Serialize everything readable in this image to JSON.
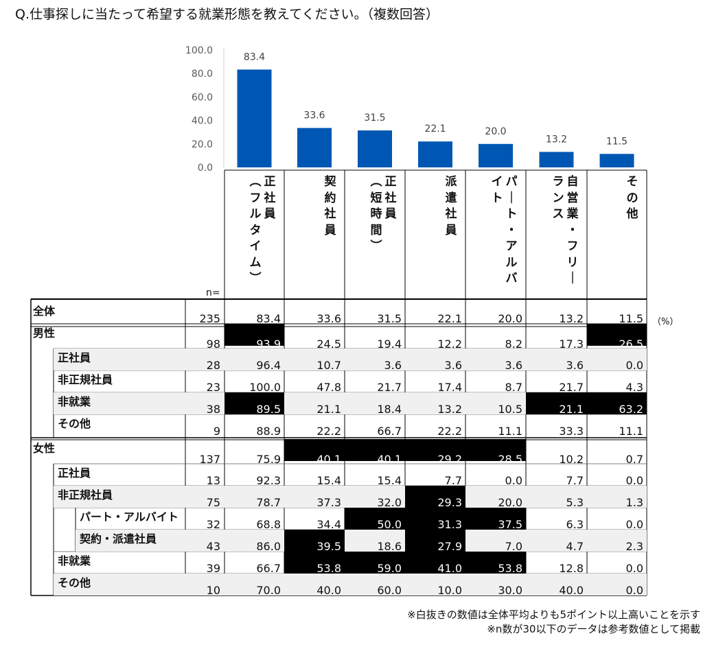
{
  "question": "Q.仕事探しに当たって希望する就業形態を教えてください。（複数回答）",
  "chart_data": {
    "type": "bar",
    "title": "",
    "categories": [
      "正社員（フルタイム）",
      "契約社員",
      "正社員（短時間）",
      "派遣社員",
      "パート・アルバイト",
      "自営業・フリーランス",
      "その他"
    ],
    "values": [
      83.4,
      33.6,
      31.5,
      22.1,
      20.0,
      13.2,
      11.5
    ],
    "value_labels": [
      "83.4",
      "33.6",
      "31.5",
      "22.1",
      "20.0",
      "13.2",
      "11.5"
    ],
    "yticks": [
      "0.0",
      "20.0",
      "40.0",
      "60.0",
      "80.0",
      "100.0"
    ],
    "ylim": [
      0,
      100
    ],
    "bar_color": "#0057b3",
    "grid": false
  },
  "column_headers": [
    [
      "正社員",
      "（フルタイム）"
    ],
    [
      "契約社員"
    ],
    [
      "正社員",
      "（短時間）"
    ],
    [
      "派遣社員"
    ],
    [
      "パート・アルバ",
      "イト"
    ],
    [
      "自営業・フリー",
      "ランス"
    ],
    [
      "その他"
    ]
  ],
  "n_label": "n=",
  "unit": "（%）",
  "table": [
    {
      "label": "全体",
      "level": 0,
      "n": "235",
      "values": [
        "83.4",
        "33.6",
        "31.5",
        "22.1",
        "20.0",
        "13.2",
        "11.5"
      ],
      "highlight": []
    },
    {
      "label": "男性",
      "level": 0,
      "n": "98",
      "values": [
        "93.9",
        "24.5",
        "19.4",
        "12.2",
        "8.2",
        "17.3",
        "26.5"
      ],
      "highlight": [
        0,
        6
      ]
    },
    {
      "label": "正社員",
      "level": 1,
      "n": "28",
      "values": [
        "96.4",
        "10.7",
        "3.6",
        "3.6",
        "3.6",
        "3.6",
        "0.0"
      ],
      "highlight": []
    },
    {
      "label": "非正規社員",
      "level": 1,
      "n": "23",
      "values": [
        "100.0",
        "47.8",
        "21.7",
        "17.4",
        "8.7",
        "21.7",
        "4.3"
      ],
      "highlight": []
    },
    {
      "label": "非就業",
      "level": 1,
      "n": "38",
      "values": [
        "89.5",
        "21.1",
        "18.4",
        "13.2",
        "10.5",
        "21.1",
        "63.2"
      ],
      "highlight": [
        0,
        5,
        6
      ]
    },
    {
      "label": "その他",
      "level": 1,
      "n": "9",
      "values": [
        "88.9",
        "22.2",
        "66.7",
        "22.2",
        "11.1",
        "33.3",
        "11.1"
      ],
      "highlight": []
    },
    {
      "label": "女性",
      "level": 0,
      "n": "137",
      "values": [
        "75.9",
        "40.1",
        "40.1",
        "29.2",
        "28.5",
        "10.2",
        "0.7"
      ],
      "highlight": [
        1,
        2,
        3,
        4
      ]
    },
    {
      "label": "正社員",
      "level": 1,
      "n": "13",
      "values": [
        "92.3",
        "15.4",
        "15.4",
        "7.7",
        "0.0",
        "7.7",
        "0.0"
      ],
      "highlight": []
    },
    {
      "label": "非正規社員",
      "level": 1,
      "n": "75",
      "values": [
        "78.7",
        "37.3",
        "32.0",
        "29.3",
        "20.0",
        "5.3",
        "1.3"
      ],
      "highlight": [
        3
      ]
    },
    {
      "label": "パート・アルバイト",
      "level": 2,
      "n": "32",
      "values": [
        "68.8",
        "34.4",
        "50.0",
        "31.3",
        "37.5",
        "6.3",
        "0.0"
      ],
      "highlight": [
        2,
        3,
        4
      ]
    },
    {
      "label": "契約・派遣社員",
      "level": 2,
      "n": "43",
      "values": [
        "86.0",
        "39.5",
        "18.6",
        "27.9",
        "7.0",
        "4.7",
        "2.3"
      ],
      "highlight": [
        1,
        3
      ]
    },
    {
      "label": "非就業",
      "level": 1,
      "n": "39",
      "values": [
        "66.7",
        "53.8",
        "59.0",
        "41.0",
        "53.8",
        "12.8",
        "0.0"
      ],
      "highlight": [
        1,
        2,
        3,
        4
      ]
    },
    {
      "label": "その他",
      "level": 1,
      "n": "10",
      "values": [
        "70.0",
        "40.0",
        "60.0",
        "10.0",
        "30.0",
        "40.0",
        "0.0"
      ],
      "highlight": []
    }
  ],
  "notes": [
    "※白抜きの数値は全体平均よりも5ポイント以上高いことを示す",
    "※n数が30以下のデータは参考数値として掲載"
  ]
}
